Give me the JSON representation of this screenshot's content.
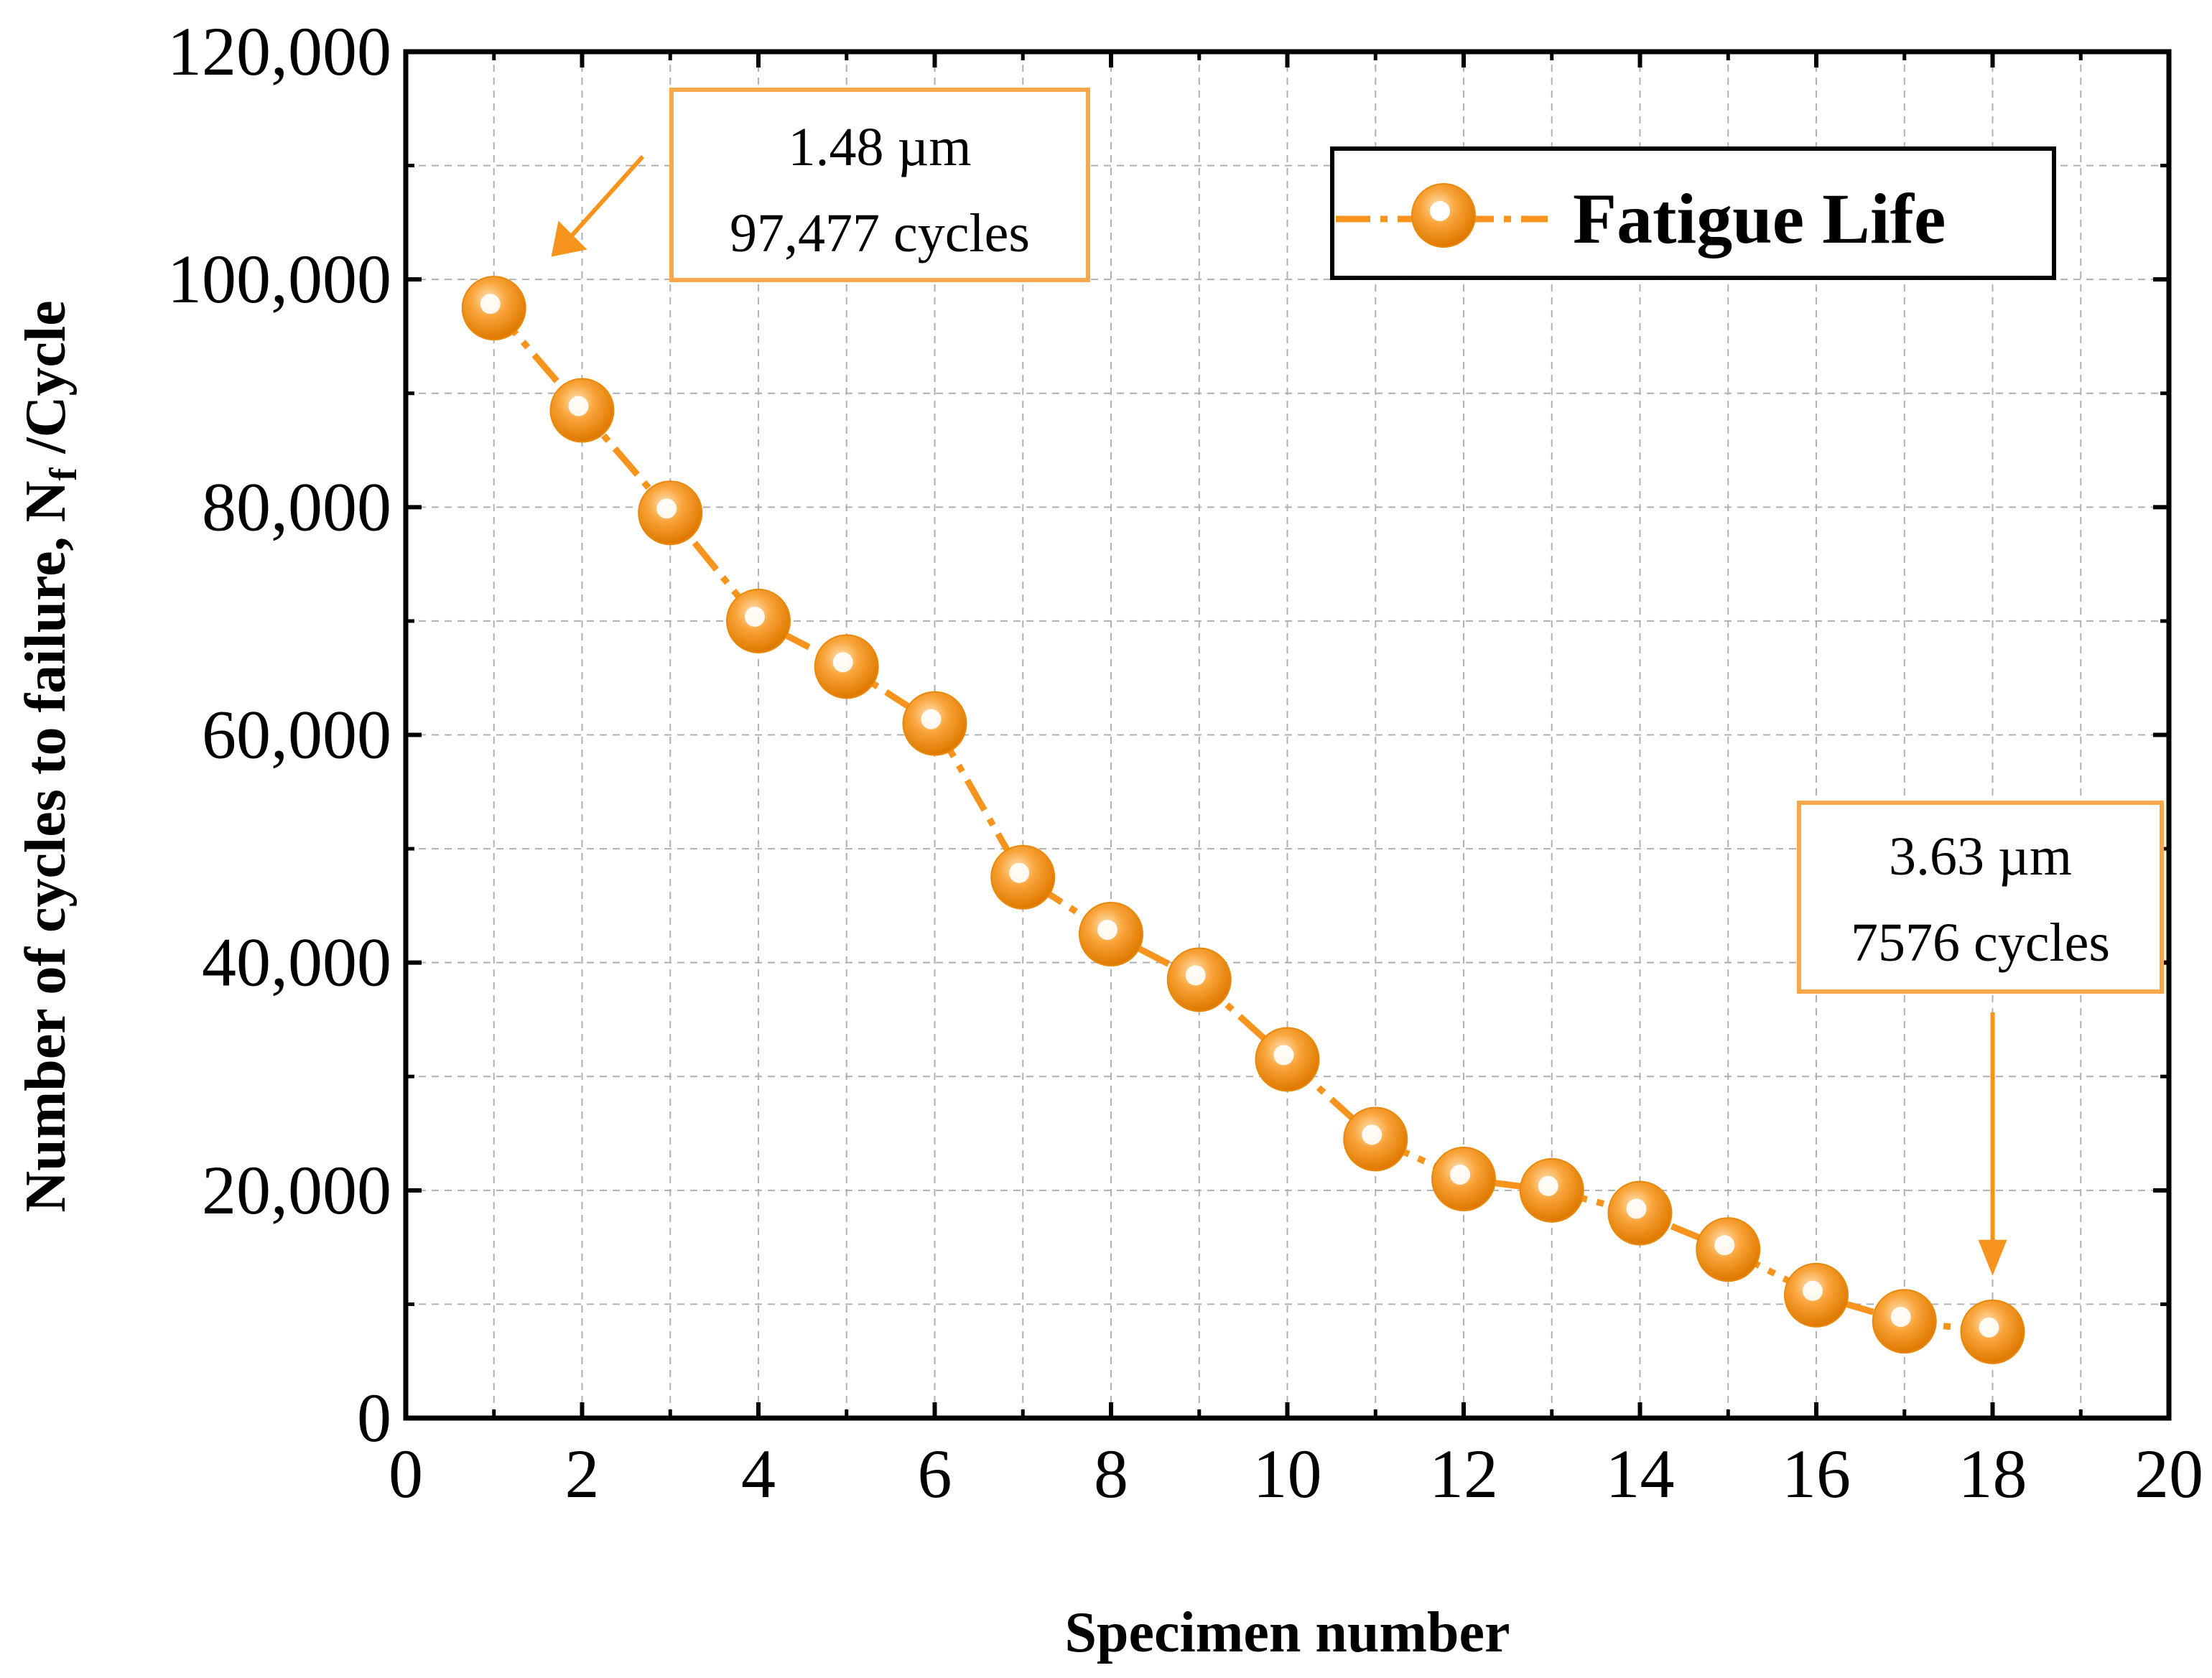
{
  "chart_data": {
    "type": "line",
    "title": "",
    "xlabel": "Specimen number",
    "ylabel": "Number of cycles to failure, N",
    "ylabel_sub": "f",
    "ylabel_suffix": " /Cycle",
    "xlim": [
      0,
      20
    ],
    "ylim": [
      0,
      120000
    ],
    "xticks": [
      0,
      2,
      4,
      6,
      8,
      10,
      12,
      14,
      16,
      18,
      20
    ],
    "yticks": [
      0,
      20000,
      40000,
      60000,
      80000,
      100000,
      120000
    ],
    "xtick_labels": [
      "0",
      "2",
      "4",
      "6",
      "8",
      "10",
      "12",
      "14",
      "16",
      "18",
      "20"
    ],
    "ytick_labels": [
      "0",
      "20,000",
      "40,000",
      "60,000",
      "80,000",
      "100,000",
      "120,000"
    ],
    "grid": true,
    "legend_position": "top-right",
    "series": [
      {
        "name": "Fatigue Life",
        "color": "#f7941d",
        "x": [
          1,
          2,
          3,
          4,
          5,
          6,
          7,
          8,
          9,
          10,
          11,
          12,
          13,
          14,
          15,
          16,
          17,
          18
        ],
        "values": [
          97477,
          88500,
          79500,
          70000,
          66000,
          61000,
          47500,
          42500,
          38500,
          31500,
          24500,
          21000,
          20000,
          18000,
          14800,
          10800,
          8500,
          7576
        ]
      }
    ],
    "annotations": [
      {
        "line1": "1.48 µm",
        "line2": "97,477 cycles",
        "points_to_x": 1.65,
        "points_to_y": 102000
      },
      {
        "line1": "3.63 µm",
        "line2": "7576 cycles",
        "points_to_x": 18.0,
        "points_to_y": 12500
      }
    ]
  }
}
